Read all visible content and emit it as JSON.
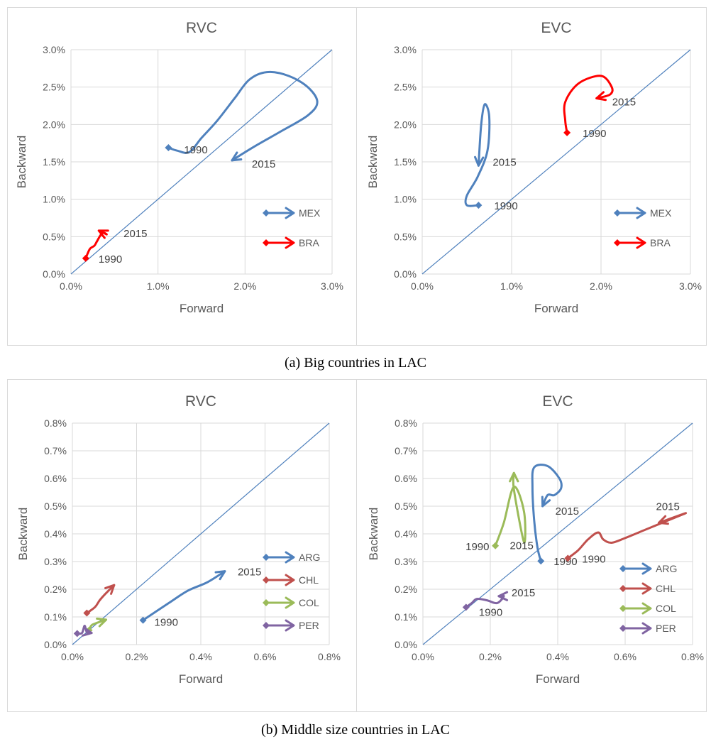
{
  "captions": {
    "a": "(a) Big countries in LAC",
    "b": "(b) Middle size countries in LAC"
  },
  "colors": {
    "MEX": "#4f81bd",
    "BRA": "#ff0000",
    "ARG": "#4f81bd",
    "CHL": "#c0504d",
    "COL": "#9bbb59",
    "PER": "#8064a2",
    "diagonal": "#4f81bd",
    "grid": "#d9d9d9",
    "axis_text": "#595959"
  },
  "chart_data": [
    {
      "id": "a-rvc",
      "type": "line",
      "title": "RVC",
      "xlabel": "Forward",
      "ylabel": "Backward",
      "xlim": [
        0,
        3.0
      ],
      "ylim": [
        0,
        3.0
      ],
      "x_ticks": [
        "0.0%",
        "1.0%",
        "2.0%",
        "3.0%"
      ],
      "y_ticks": [
        "0.0%",
        "0.5%",
        "1.0%",
        "1.5%",
        "2.0%",
        "2.5%",
        "3.0%"
      ],
      "grid": true,
      "legend_position": "right",
      "series": [
        {
          "name": "MEX",
          "color_key": "MEX",
          "points": [
            [
              1.12,
              1.69
            ],
            [
              1.22,
              1.65
            ],
            [
              1.36,
              1.63
            ],
            [
              1.5,
              1.82
            ],
            [
              1.68,
              2.05
            ],
            [
              1.88,
              2.35
            ],
            [
              2.05,
              2.6
            ],
            [
              2.25,
              2.7
            ],
            [
              2.5,
              2.65
            ],
            [
              2.72,
              2.5
            ],
            [
              2.83,
              2.3
            ],
            [
              2.72,
              2.12
            ],
            [
              2.4,
              1.9
            ],
            [
              2.1,
              1.7
            ],
            [
              1.85,
              1.52
            ]
          ],
          "labels": [
            {
              "text": "1990",
              "at": [
                1.12,
                1.69
              ],
              "dx": 22,
              "dy": 8
            },
            {
              "text": "2015",
              "at": [
                1.85,
                1.52
              ],
              "dx": 28,
              "dy": 10
            }
          ]
        },
        {
          "name": "BRA",
          "color_key": "BRA",
          "points": [
            [
              0.17,
              0.21
            ],
            [
              0.19,
              0.27
            ],
            [
              0.22,
              0.34
            ],
            [
              0.27,
              0.38
            ],
            [
              0.3,
              0.44
            ],
            [
              0.36,
              0.55
            ],
            [
              0.41,
              0.53
            ],
            [
              0.32,
              0.58
            ]
          ],
          "labels": [
            {
              "text": "1990",
              "at": [
                0.17,
                0.21
              ],
              "dx": 18,
              "dy": 6
            },
            {
              "text": "2015",
              "at": [
                0.36,
                0.55
              ],
              "dx": 30,
              "dy": 6
            }
          ]
        }
      ]
    },
    {
      "id": "a-evc",
      "type": "line",
      "title": "EVC",
      "xlabel": "Forward",
      "ylabel": "Backward",
      "xlim": [
        0,
        3.0
      ],
      "ylim": [
        0,
        3.0
      ],
      "x_ticks": [
        "0.0%",
        "1.0%",
        "2.0%",
        "3.0%"
      ],
      "y_ticks": [
        "0.0%",
        "0.5%",
        "1.0%",
        "1.5%",
        "2.0%",
        "2.5%",
        "3.0%"
      ],
      "grid": true,
      "legend_position": "right",
      "series": [
        {
          "name": "MEX",
          "color_key": "MEX",
          "points": [
            [
              0.63,
              0.92
            ],
            [
              0.5,
              0.92
            ],
            [
              0.5,
              1.05
            ],
            [
              0.62,
              1.3
            ],
            [
              0.73,
              1.65
            ],
            [
              0.75,
              2.1
            ],
            [
              0.7,
              2.27
            ],
            [
              0.66,
              2.0
            ],
            [
              0.63,
              1.45
            ]
          ],
          "labels": [
            {
              "text": "1990",
              "at": [
                0.63,
                0.92
              ],
              "dx": 22,
              "dy": 6
            },
            {
              "text": "2015",
              "at": [
                0.63,
                1.45
              ],
              "dx": 20,
              "dy": 0
            }
          ]
        },
        {
          "name": "BRA",
          "color_key": "BRA",
          "points": [
            [
              1.62,
              1.89
            ],
            [
              1.6,
              2.05
            ],
            [
              1.6,
              2.3
            ],
            [
              1.75,
              2.55
            ],
            [
              2.0,
              2.65
            ],
            [
              2.12,
              2.5
            ],
            [
              2.1,
              2.4
            ],
            [
              1.95,
              2.35
            ]
          ],
          "labels": [
            {
              "text": "1990",
              "at": [
                1.62,
                1.89
              ],
              "dx": 22,
              "dy": 6
            },
            {
              "text": "2015",
              "at": [
                1.95,
                2.35
              ],
              "dx": 22,
              "dy": 10
            }
          ]
        }
      ]
    },
    {
      "id": "b-rvc",
      "type": "line",
      "title": "RVC",
      "xlabel": "Forward",
      "ylabel": "Backward",
      "xlim": [
        0,
        0.8
      ],
      "ylim": [
        0,
        0.8
      ],
      "x_ticks": [
        "0.0%",
        "0.2%",
        "0.4%",
        "0.6%",
        "0.8%"
      ],
      "y_ticks": [
        "0.0%",
        "0.1%",
        "0.2%",
        "0.3%",
        "0.4%",
        "0.5%",
        "0.6%",
        "0.7%",
        "0.8%"
      ],
      "grid": true,
      "legend_position": "right",
      "series": [
        {
          "name": "ARG",
          "color_key": "ARG",
          "points": [
            [
              0.22,
              0.088
            ],
            [
              0.3,
              0.15
            ],
            [
              0.36,
              0.195
            ],
            [
              0.42,
              0.225
            ],
            [
              0.475,
              0.265
            ]
          ],
          "labels": [
            {
              "text": "1990",
              "at": [
                0.22,
                0.088
              ],
              "dx": 16,
              "dy": 8
            },
            {
              "text": "2015",
              "at": [
                0.475,
                0.265
              ],
              "dx": 18,
              "dy": 6
            }
          ]
        },
        {
          "name": "CHL",
          "color_key": "CHL",
          "points": [
            [
              0.045,
              0.114
            ],
            [
              0.07,
              0.135
            ],
            [
              0.085,
              0.16
            ],
            [
              0.1,
              0.18
            ],
            [
              0.13,
              0.215
            ]
          ],
          "labels": []
        },
        {
          "name": "COL",
          "color_key": "COL",
          "points": [
            [
              0.052,
              0.052
            ],
            [
              0.06,
              0.07
            ],
            [
              0.08,
              0.08
            ],
            [
              0.105,
              0.09
            ]
          ],
          "labels": []
        },
        {
          "name": "PER",
          "color_key": "PER",
          "points": [
            [
              0.015,
              0.04
            ],
            [
              0.03,
              0.042
            ],
            [
              0.038,
              0.068
            ],
            [
              0.045,
              0.045
            ],
            [
              0.06,
              0.042
            ]
          ],
          "labels": []
        }
      ]
    },
    {
      "id": "b-evc",
      "type": "line",
      "title": "EVC",
      "xlabel": "Forward",
      "ylabel": "Backward",
      "xlim": [
        0,
        0.8
      ],
      "ylim": [
        0,
        0.8
      ],
      "x_ticks": [
        "0.0%",
        "0.2%",
        "0.4%",
        "0.6%",
        "0.8%"
      ],
      "y_ticks": [
        "0.0%",
        "0.1%",
        "0.2%",
        "0.3%",
        "0.4%",
        "0.5%",
        "0.6%",
        "0.7%",
        "0.8%"
      ],
      "grid": true,
      "legend_position": "right",
      "series": [
        {
          "name": "ARG",
          "color_key": "ARG",
          "points": [
            [
              0.35,
              0.302
            ],
            [
              0.34,
              0.35
            ],
            [
              0.33,
              0.45
            ],
            [
              0.325,
              0.57
            ],
            [
              0.33,
              0.64
            ],
            [
              0.37,
              0.645
            ],
            [
              0.405,
              0.6
            ],
            [
              0.41,
              0.565
            ],
            [
              0.39,
              0.54
            ],
            [
              0.37,
              0.54
            ],
            [
              0.355,
              0.5
            ]
          ],
          "labels": [
            {
              "text": "1990",
              "at": [
                0.35,
                0.302
              ],
              "dx": 18,
              "dy": 6
            },
            {
              "text": "2015",
              "at": [
                0.355,
                0.5
              ],
              "dx": 18,
              "dy": 12
            }
          ]
        },
        {
          "name": "CHL",
          "color_key": "CHL",
          "points": [
            [
              0.43,
              0.312
            ],
            [
              0.46,
              0.34
            ],
            [
              0.49,
              0.38
            ],
            [
              0.52,
              0.405
            ],
            [
              0.535,
              0.38
            ],
            [
              0.56,
              0.368
            ],
            [
              0.6,
              0.385
            ],
            [
              0.66,
              0.415
            ],
            [
              0.72,
              0.445
            ],
            [
              0.78,
              0.475
            ],
            [
              0.7,
              0.44
            ]
          ],
          "labels": [
            {
              "text": "1990",
              "at": [
                0.43,
                0.312
              ],
              "dx": 20,
              "dy": 6
            },
            {
              "text": "2015",
              "at": [
                0.7,
                0.44
              ],
              "dx": -4,
              "dy": -18
            }
          ]
        },
        {
          "name": "COL",
          "color_key": "COL",
          "points": [
            [
              0.215,
              0.357
            ],
            [
              0.24,
              0.44
            ],
            [
              0.27,
              0.57
            ],
            [
              0.3,
              0.48
            ],
            [
              0.3,
              0.37
            ],
            [
              0.27,
              0.56
            ],
            [
              0.27,
              0.62
            ]
          ],
          "labels": [
            {
              "text": "1990",
              "at": [
                0.215,
                0.357
              ],
              "dx": -42,
              "dy": 6
            },
            {
              "text": "2015",
              "at": [
                0.3,
                0.37
              ],
              "dx": -20,
              "dy": 10
            }
          ]
        },
        {
          "name": "PER",
          "color_key": "PER",
          "points": [
            [
              0.128,
              0.135
            ],
            [
              0.145,
              0.15
            ],
            [
              0.16,
              0.165
            ],
            [
              0.19,
              0.16
            ],
            [
              0.22,
              0.15
            ],
            [
              0.24,
              0.175
            ],
            [
              0.225,
              0.175
            ]
          ],
          "labels": [
            {
              "text": "1990",
              "at": [
                0.128,
                0.135
              ],
              "dx": 18,
              "dy": 12
            },
            {
              "text": "2015",
              "at": [
                0.225,
                0.175
              ],
              "dx": 18,
              "dy": 0
            }
          ]
        }
      ]
    }
  ]
}
